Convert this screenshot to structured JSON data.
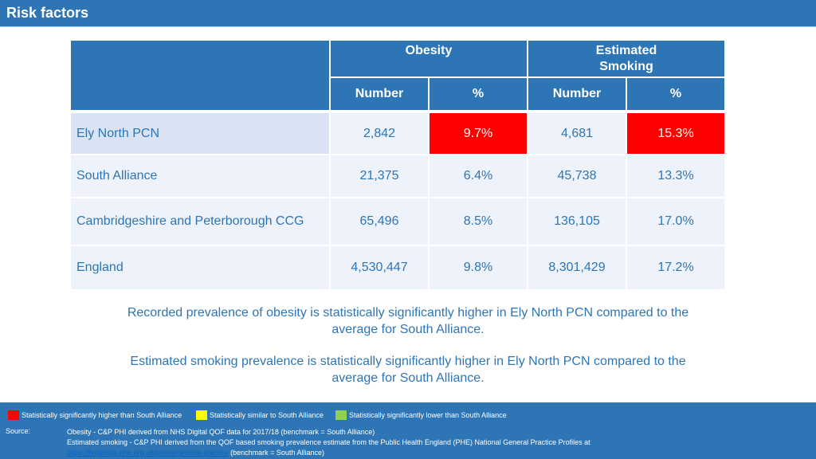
{
  "header": {
    "title": "Risk factors"
  },
  "table": {
    "group_headers": [
      "Obesity",
      "Estimated\nSmoking"
    ],
    "sub_headers": [
      "Number",
      "%",
      "Number",
      "%"
    ],
    "rows": [
      {
        "name": "Ely North PCN",
        "cells": [
          "2,842",
          "9.7%",
          "4,681",
          "15.3%"
        ],
        "flags": [
          "",
          "higher",
          "",
          "higher"
        ]
      },
      {
        "name": "South Alliance",
        "cells": [
          "21,375",
          "6.4%",
          "45,738",
          "13.3%"
        ],
        "flags": [
          "",
          "",
          "",
          ""
        ]
      },
      {
        "name": "Cambridgeshire and Peterborough CCG",
        "cells": [
          "65,496",
          "8.5%",
          "136,105",
          "17.0%"
        ],
        "flags": [
          "",
          "",
          "",
          ""
        ]
      },
      {
        "name": "England",
        "cells": [
          "4,530,447",
          "9.8%",
          "8,301,429",
          "17.2%"
        ],
        "flags": [
          "",
          "",
          "",
          ""
        ]
      }
    ]
  },
  "notes": [
    "Recorded prevalence of obesity is statistically significantly higher in Ely North PCN compared to the average for South Alliance.",
    "Estimated smoking prevalence is statistically significantly higher in Ely North PCN compared to the average for South Alliance."
  ],
  "legend": [
    {
      "label": "Statistically significantly higher than South Alliance",
      "color": "#ff0000"
    },
    {
      "label": "Statistically similar to South Alliance",
      "color": "#ffff00"
    },
    {
      "label": "Statistically significantly lower than South Alliance",
      "color": "#92d050"
    }
  ],
  "source": {
    "label": "Source:",
    "line1": "Obesity - C&P PHI derived from NHS Digital QOF data for 2017/18 (benchmark = South Alliance)",
    "line2": "Estimated smoking - C&P PHI derived from the QOF based smoking prevalence estimate from the Public Health England (PHE) National General Practice Profiles at",
    "link": "https://fingertips.phe.org.uk/profile/general-practice",
    "line3_suffix": "(benchmark = South Alliance)"
  },
  "colors": {
    "brand_blue": "#2e75b6",
    "highlight_red": "#ff0000"
  }
}
